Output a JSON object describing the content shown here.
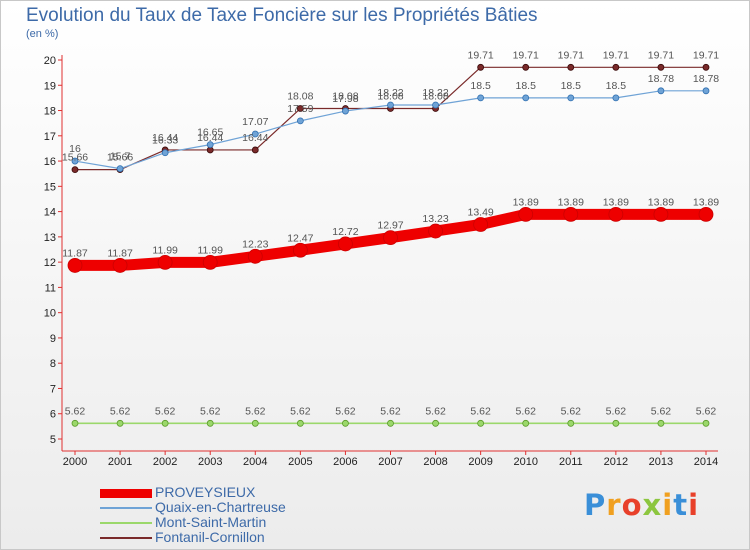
{
  "chart_data": {
    "type": "line",
    "title": "Evolution du Taux de Taxe Foncière sur les Propriétés Bâties",
    "ylabel": "(en %)",
    "xlabel": "",
    "ylim": [
      5,
      20
    ],
    "y_ticks": [
      5,
      6,
      7,
      8,
      9,
      10,
      11,
      12,
      13,
      14,
      15,
      16,
      17,
      18,
      19,
      20
    ],
    "categories": [
      "2000",
      "2001",
      "2002",
      "2003",
      "2004",
      "2005",
      "2006",
      "2007",
      "2008",
      "2009",
      "2010",
      "2011",
      "2012",
      "2013",
      "2014"
    ],
    "series": [
      {
        "name": "PROVEYSIEUX",
        "color": "#ee0000",
        "values": [
          11.87,
          11.87,
          11.99,
          11.99,
          12.23,
          12.47,
          12.72,
          12.97,
          13.23,
          13.49,
          13.89,
          13.89,
          13.89,
          13.89,
          13.89
        ]
      },
      {
        "name": "Quaix-en-Chartreuse",
        "color": "#6fa3d6",
        "values": [
          16,
          15.7,
          16.33,
          16.65,
          17.07,
          17.59,
          17.98,
          18.22,
          18.22,
          18.5,
          18.5,
          18.5,
          18.5,
          18.78,
          18.78
        ]
      },
      {
        "name": "Mont-Saint-Martin",
        "color": "#9bd86b",
        "values": [
          5.62,
          5.62,
          5.62,
          5.62,
          5.62,
          5.62,
          5.62,
          5.62,
          5.62,
          5.62,
          5.62,
          5.62,
          5.62,
          5.62,
          5.62
        ]
      },
      {
        "name": "Fontanil-Cornillon",
        "color": "#7a2a2a",
        "values": [
          15.66,
          15.66,
          16.44,
          16.44,
          16.44,
          18.08,
          18.08,
          18.08,
          18.08,
          19.71,
          19.71,
          19.71,
          19.71,
          19.71,
          19.71
        ]
      }
    ],
    "data_labels": {
      "PROVEYSIEUX": [
        "11.87",
        "11.87",
        "11.99",
        "11.99",
        "12.23",
        "12.47",
        "12.72",
        "12.97",
        "13.23",
        "13.49",
        "13.89",
        "13.89",
        "13.89",
        "13.89",
        "13.89"
      ],
      "Quaix-en-Chartreuse": [
        "16",
        "15.7",
        "16.33",
        "16.65",
        "17.07",
        "17.59",
        "17.98",
        "18.22",
        "18.22",
        "18.5",
        "18.5",
        "18.5",
        "18.5",
        "18.78",
        "18.78"
      ],
      "Mont-Saint-Martin": [
        "5.62",
        "5.62",
        "5.62",
        "5.62",
        "5.62",
        "5.62",
        "5.62",
        "5.62",
        "5.62",
        "5.62",
        "5.62",
        "5.62",
        "5.62",
        "5.62",
        "5.62"
      ],
      "Fontanil-Cornillon": [
        "15.66",
        "15.66",
        "16.44",
        "16.44",
        "16.44",
        "18.08",
        "18.08",
        "18.08",
        "18.08",
        "19.71",
        "19.71",
        "19.71",
        "19.71",
        "19.71",
        "19.71"
      ]
    },
    "grid": false,
    "legend_position": "bottom-left"
  },
  "logo": {
    "text": "Proxiti"
  }
}
